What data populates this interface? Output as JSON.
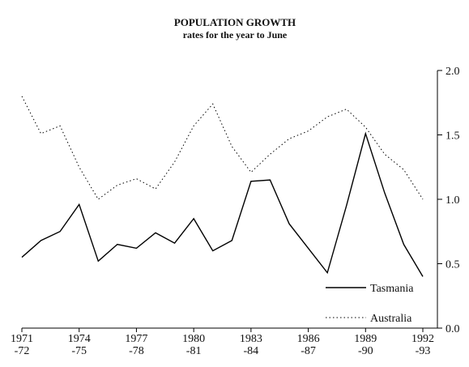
{
  "chart_data": {
    "type": "line",
    "title": "POPULATION GROWTH",
    "subtitle": "rates for the year to June",
    "categories": [
      "1971\n-72",
      null,
      null,
      "1974\n-75",
      null,
      null,
      "1977\n-78",
      null,
      null,
      "1980\n-81",
      null,
      null,
      "1983\n-84",
      null,
      null,
      "1986\n-87",
      null,
      null,
      "1989\n-90",
      null,
      null,
      "1992\n-93"
    ],
    "series": [
      {
        "name": "Tasmania",
        "color": "#000000",
        "style": "solid",
        "values": [
          0.55,
          0.68,
          0.75,
          0.96,
          0.52,
          0.65,
          0.62,
          0.74,
          0.66,
          0.85,
          0.6,
          0.68,
          1.14,
          1.15,
          0.81,
          0.62,
          0.43,
          0.95,
          1.51,
          1.05,
          0.65,
          0.4
        ]
      },
      {
        "name": "Australia",
        "color": "#000000",
        "style": "dotted",
        "values": [
          1.8,
          1.51,
          1.57,
          1.25,
          1.0,
          1.11,
          1.16,
          1.08,
          1.29,
          1.57,
          1.74,
          1.41,
          1.21,
          1.35,
          1.47,
          1.53,
          1.64,
          1.7,
          1.56,
          1.35,
          1.23,
          1.0
        ]
      }
    ],
    "ylim": [
      0,
      2
    ],
    "yticks": [
      {
        "value": 0,
        "label": "0.0"
      },
      {
        "value": 0.5,
        "label": "0.5"
      },
      {
        "value": 1,
        "label": "1.0"
      },
      {
        "value": 1.5,
        "label": "1.5"
      },
      {
        "value": 2,
        "label": "2.0"
      }
    ],
    "y_axis_side": "right",
    "legend": "bottom-right"
  }
}
